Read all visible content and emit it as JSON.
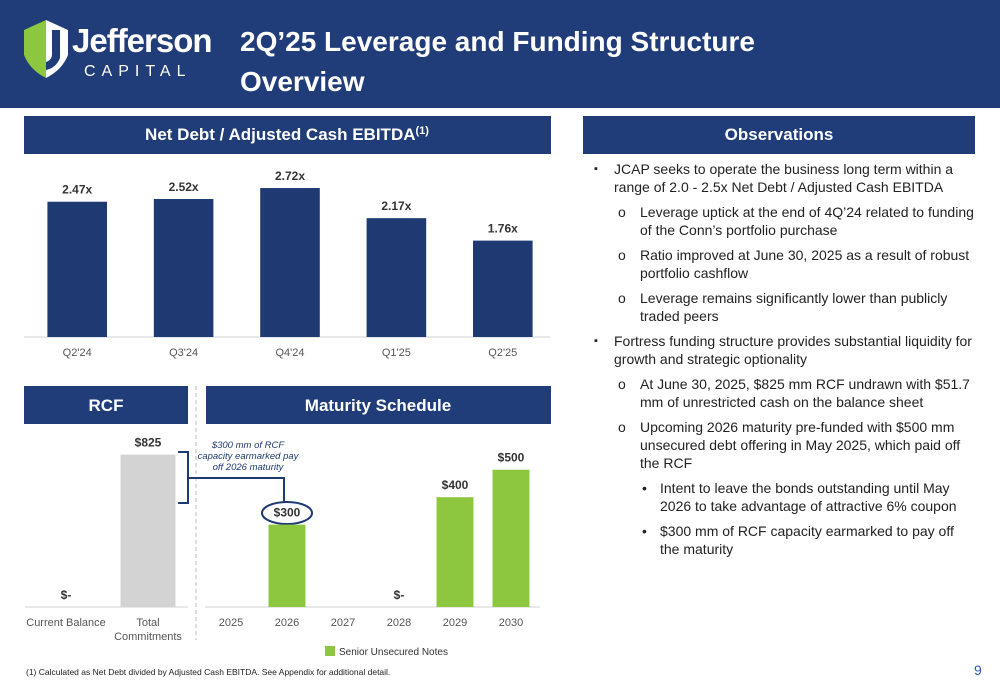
{
  "header": {
    "logo_name": "Jefferson",
    "logo_sub": "CAPITAL",
    "title": "2Q’25 Leverage and Funding Structure Overview"
  },
  "chart_data": [
    {
      "type": "bar",
      "title": "Net Debt / Adjusted Cash EBITDA",
      "title_note": "(1)",
      "categories": [
        "Q2'24",
        "Q3'24",
        "Q4'24",
        "Q1'25",
        "Q2'25"
      ],
      "values": [
        2.47,
        2.52,
        2.72,
        2.17,
        1.76
      ],
      "value_labels": [
        "2.47x",
        "2.52x",
        "2.72x",
        "2.17x",
        "1.76x"
      ],
      "color": "#1f3a73",
      "ylim": [
        0,
        3
      ]
    },
    {
      "type": "bar",
      "title": "RCF",
      "categories": [
        "Current Balance",
        "Total Commitments"
      ],
      "values": [
        0,
        825
      ],
      "value_labels": [
        "$-",
        "$825"
      ],
      "color": "#d3d3d3",
      "ylim": [
        0,
        850
      ],
      "annotation": "$300 mm of RCF capacity earmarked pay off 2026 maturity"
    },
    {
      "type": "bar",
      "title": "Maturity Schedule",
      "categories": [
        "2025",
        "2026",
        "2027",
        "2028",
        "2029",
        "2030"
      ],
      "series": [
        {
          "name": "Senior Unsecured Notes",
          "color": "#8dc63f",
          "values": [
            null,
            300,
            null,
            0,
            400,
            500
          ],
          "value_labels": [
            null,
            "$300",
            null,
            "$-",
            "$400",
            "$500"
          ]
        }
      ],
      "ylim": [
        0,
        550
      ]
    }
  ],
  "observations": {
    "title": "Observations",
    "items": [
      {
        "level": 0,
        "text": "JCAP seeks to operate the business long term within a range of 2.0 - 2.5x Net Debt / Adjusted Cash EBITDA"
      },
      {
        "level": 1,
        "text": "Leverage uptick at the end of 4Q’24 related to funding of the Conn’s portfolio purchase"
      },
      {
        "level": 1,
        "text": "Ratio improved at June 30, 2025 as a result of robust portfolio cashflow"
      },
      {
        "level": 1,
        "text": "Leverage remains significantly lower than publicly traded peers"
      },
      {
        "level": 0,
        "text": "Fortress funding structure provides substantial liquidity for growth and strategic optionality"
      },
      {
        "level": 1,
        "text": "At June 30, 2025, $825 mm RCF undrawn with $51.7 mm of unrestricted cash on the balance sheet"
      },
      {
        "level": 1,
        "text": "Upcoming 2026 maturity pre-funded with $500 mm unsecured debt offering in May 2025, which paid off the RCF"
      },
      {
        "level": 2,
        "text": "Intent to leave the bonds outstanding until May 2026 to take advantage of attractive 6% coupon"
      },
      {
        "level": 2,
        "text": "$300 mm of RCF capacity earmarked to pay off the maturity"
      }
    ]
  },
  "footnote": "(1) Calculated as Net Debt divided by Adjusted Cash EBITDA. See Appendix for additional detail.",
  "page_number": "9"
}
